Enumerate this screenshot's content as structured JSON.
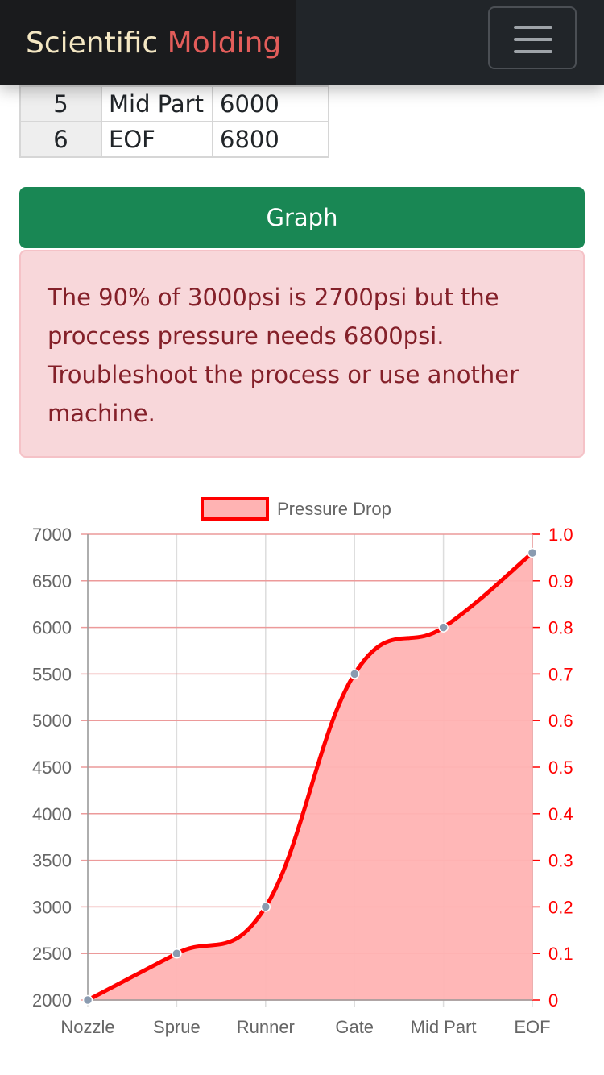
{
  "navbar": {
    "brand_part1": "Scientific",
    "brand_part2": "Molding",
    "toggler_icon": "hamburger-menu-icon",
    "colors": {
      "bg": "#212529",
      "brand_accent": "#e35d5a",
      "brand_text": "#f4e7c3"
    }
  },
  "table": {
    "rows": [
      {
        "num": "5",
        "name": "Mid Part",
        "value": "6000"
      },
      {
        "num": "6",
        "name": "EOF",
        "value": "6800"
      }
    ]
  },
  "graph_button": {
    "label": "Graph",
    "color": "#198754"
  },
  "alert": {
    "message": "The 90% of 3000psi is 2700psi but the proccess pressure needs 6800psi. Troubleshoot the process or use another machine.",
    "colors": {
      "bg": "#f8d7da",
      "text": "#842029"
    }
  },
  "chart_data": {
    "type": "area",
    "categories": [
      "Nozzle",
      "Sprue",
      "Runner",
      "Gate",
      "Mid Part",
      "EOF"
    ],
    "series": [
      {
        "name": "Pressure Drop",
        "values": [
          2000,
          2500,
          3000,
          5500,
          6000,
          6800
        ],
        "line_color": "#ff0000",
        "fill_color": "#ffb3b3"
      }
    ],
    "y_left": {
      "min": 2000,
      "max": 7000,
      "ticks": [
        "2000",
        "2500",
        "3000",
        "3500",
        "4000",
        "4500",
        "5000",
        "5500",
        "6000",
        "6500",
        "7000"
      ]
    },
    "y_right": {
      "min": 0,
      "max": 1.0,
      "ticks": [
        "0",
        "0.1",
        "0.2",
        "0.3",
        "0.4",
        "0.5",
        "0.6",
        "0.7",
        "0.8",
        "0.9",
        "1.0"
      ],
      "color": "#ff0000"
    },
    "legend_position": "top",
    "grid": true
  }
}
